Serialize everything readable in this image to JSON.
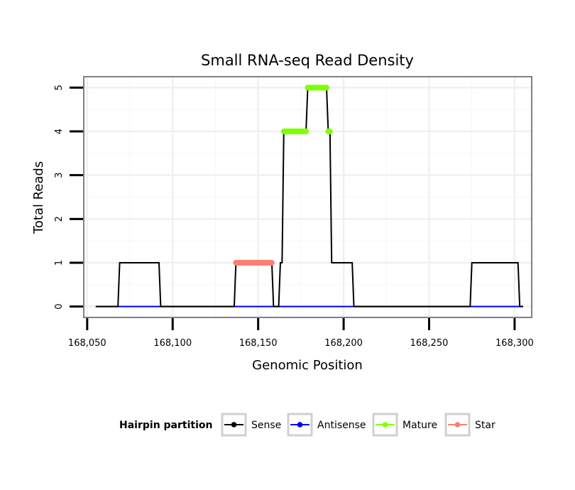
{
  "chart_data": {
    "type": "line",
    "title": "Small RNA-seq Read Density",
    "xlabel": "Genomic Position",
    "ylabel": "Total Reads",
    "xlim": [
      168048,
      168310
    ],
    "ylim": [
      -0.25,
      5.25
    ],
    "x_ticks": [
      168050,
      168100,
      168150,
      168200,
      168250,
      168300
    ],
    "x_tick_labels": [
      "168,050",
      "168,100",
      "168,150",
      "168,200",
      "168,250",
      "168,300"
    ],
    "y_ticks": [
      0,
      1,
      2,
      3,
      4,
      5
    ],
    "y_tick_labels": [
      "0",
      "1",
      "2",
      "3",
      "4",
      "5"
    ],
    "grid": true,
    "legend_title": "Hairpin partition",
    "legend_position": "bottom",
    "series": [
      {
        "name": "Sense",
        "color": "#000000",
        "style": "line",
        "points": [
          [
            168055,
            0
          ],
          [
            168068,
            0
          ],
          [
            168069,
            1
          ],
          [
            168092,
            1
          ],
          [
            168093,
            0
          ],
          [
            168136,
            0
          ],
          [
            168137,
            1
          ],
          [
            168158,
            1
          ],
          [
            168159,
            0
          ],
          [
            168162,
            0
          ],
          [
            168163,
            1
          ],
          [
            168164,
            1
          ],
          [
            168165,
            4
          ],
          [
            168178,
            4
          ],
          [
            168179,
            5
          ],
          [
            168190,
            5
          ],
          [
            168191,
            4
          ],
          [
            168192,
            4
          ],
          [
            168193,
            1
          ],
          [
            168205,
            1
          ],
          [
            168206,
            0
          ],
          [
            168274,
            0
          ],
          [
            168275,
            1
          ],
          [
            168302,
            1
          ],
          [
            168303,
            0
          ],
          [
            168305,
            0
          ]
        ]
      },
      {
        "name": "Antisense",
        "color": "#0000ff",
        "style": "line",
        "points": [
          [
            168055,
            0
          ],
          [
            168305,
            0
          ]
        ]
      },
      {
        "name": "Mature",
        "color": "#7fff00",
        "style": "points",
        "points": [
          [
            168165,
            4
          ],
          [
            168178,
            4
          ],
          [
            168179,
            5
          ],
          [
            168190,
            5
          ],
          [
            168191,
            4
          ],
          [
            168192,
            4
          ]
        ]
      },
      {
        "name": "Star",
        "color": "#fa8072",
        "style": "points",
        "points": [
          [
            168137,
            1
          ],
          [
            168158,
            1
          ]
        ]
      }
    ]
  }
}
